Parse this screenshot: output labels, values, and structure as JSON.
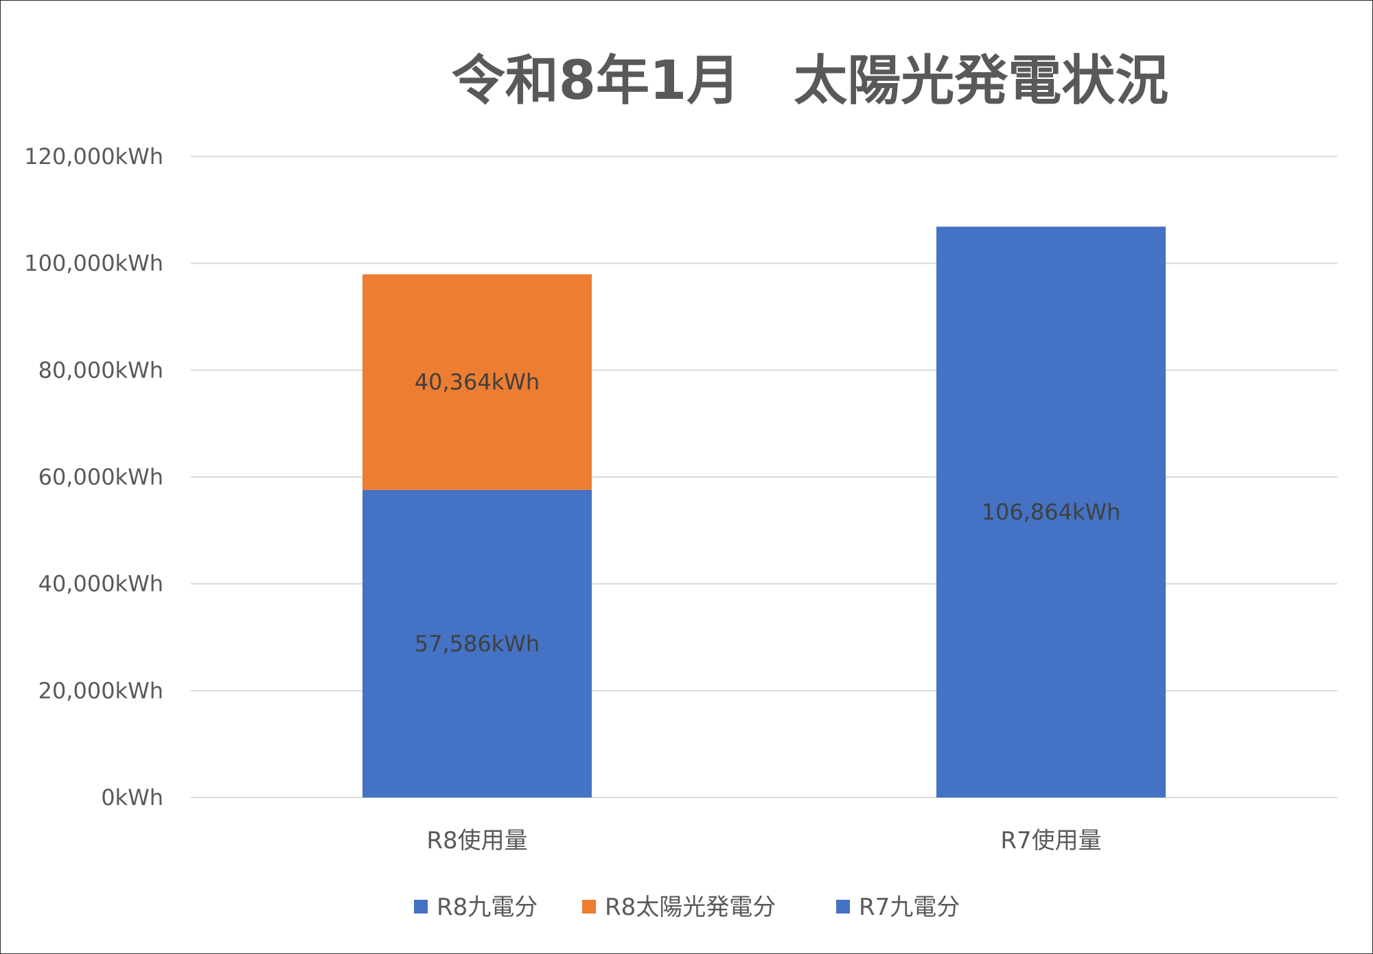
{
  "chart_data": {
    "type": "bar",
    "stacked": true,
    "title": "令和8年1月　太陽光発電状況",
    "categories": [
      "R8使用量",
      "R7使用量"
    ],
    "series": [
      {
        "name": "R8九電分",
        "values": [
          57586,
          null
        ],
        "labels": [
          "57,586kWh",
          ""
        ],
        "color": "#4472C4"
      },
      {
        "name": "R8太陽光発電分",
        "values": [
          40364,
          null
        ],
        "labels": [
          "40,364kWh",
          ""
        ],
        "color": "#ED7D31"
      },
      {
        "name": "R7九電分",
        "values": [
          null,
          106864
        ],
        "labels": [
          "",
          "106,864kWh"
        ],
        "color": "#4472C4"
      }
    ],
    "ylim": [
      0,
      120000
    ],
    "yticks": [
      0,
      20000,
      40000,
      60000,
      80000,
      100000,
      120000
    ],
    "ytick_labels": [
      "0kWh",
      "20,000kWh",
      "40,000kWh",
      "60,000kWh",
      "80,000kWh",
      "100,000kWh",
      "120,000kWh"
    ],
    "grid": true,
    "legend_position": "bottom",
    "colors": {
      "grid": "#D9D9D9",
      "text": "#595959",
      "label": "#404040"
    }
  }
}
